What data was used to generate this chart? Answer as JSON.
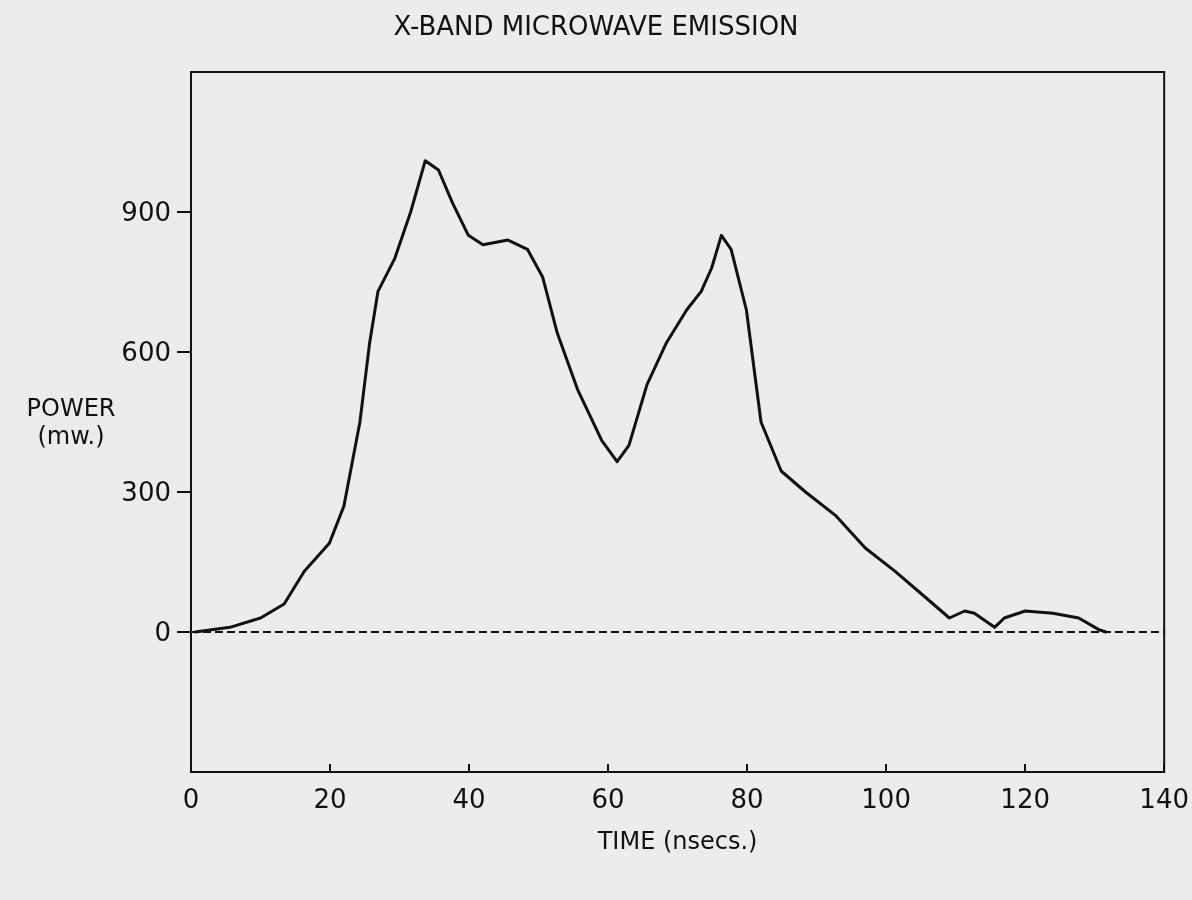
{
  "chart_data": {
    "type": "line",
    "title": "X-BAND MICROWAVE EMISSION",
    "xlabel": "TIME (nsecs.)",
    "ylabel": "POWER (mw.)",
    "xlim": [
      0,
      140
    ],
    "xticks": [
      0,
      20,
      40,
      60,
      80,
      100,
      120,
      140
    ],
    "ylim": [
      -300,
      1200
    ],
    "yticks": [
      0,
      300,
      600,
      900
    ],
    "grid": false,
    "marker": "none",
    "line_style": "solid",
    "ref_lines": [
      {
        "axis": "y",
        "value": 0,
        "color": "#111111",
        "line_style": "dashed"
      }
    ],
    "series": [
      {
        "color": "#111111",
        "x": [
          0.6,
          5.6,
          10,
          13.4,
          16.3,
          19.9,
          22,
          24.3,
          25.7,
          26.9,
          29.3,
          31.6,
          33.7,
          35.6,
          37.6,
          39.9,
          42,
          45.6,
          48.4,
          50.6,
          52.7,
          55.6,
          59.1,
          61.3,
          63,
          65.6,
          68.4,
          71.3,
          73.4,
          74.9,
          76.3,
          77.7,
          79.9,
          82,
          84.9,
          88.4,
          92.7,
          97,
          101.3,
          105.6,
          109.1,
          111.3,
          112.7,
          115.6,
          117,
          120,
          124,
          127.7,
          130.6,
          131.6
        ],
        "values": [
          0,
          10,
          30,
          60,
          130,
          190,
          270,
          450,
          620,
          730,
          800,
          900,
          1010,
          990,
          920,
          850,
          830,
          840,
          820,
          760,
          640,
          520,
          410,
          365,
          400,
          530,
          620,
          690,
          730,
          780,
          850,
          820,
          690,
          450,
          345,
          300,
          250,
          180,
          130,
          75,
          30,
          45,
          40,
          10,
          30,
          45,
          40,
          30,
          5,
          0
        ]
      }
    ]
  }
}
